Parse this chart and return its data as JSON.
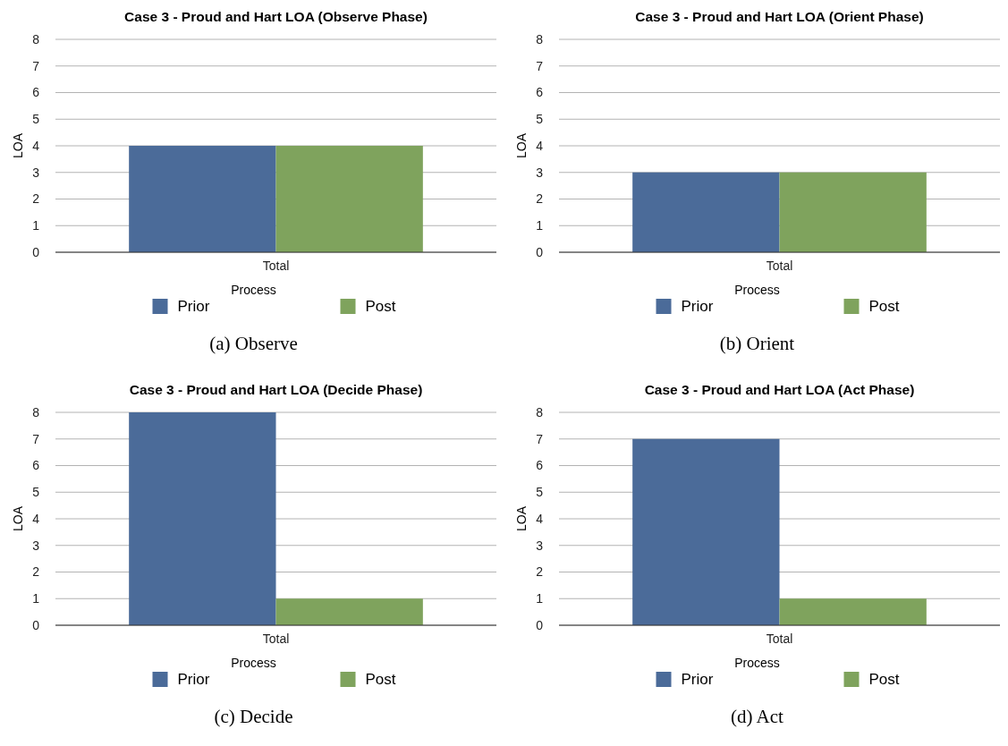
{
  "chart_data": [
    {
      "type": "bar",
      "title": "Case 3 - Proud and Hart LOA (Observe Phase)",
      "xlabel": "Process",
      "ylabel": "LOA",
      "categories": [
        "Total"
      ],
      "series": [
        {
          "name": "Prior",
          "color": "#4b6b99",
          "values": [
            4
          ]
        },
        {
          "name": "Post",
          "color": "#7fa35d",
          "values": [
            4
          ]
        }
      ],
      "ylim": [
        0,
        8
      ],
      "yticks": [
        0,
        1,
        2,
        3,
        4,
        5,
        6,
        7,
        8
      ],
      "grid": "y",
      "legend": "bottom",
      "annotations": [
        "(a) Observe"
      ]
    },
    {
      "type": "bar",
      "title": "Case 3 - Proud and Hart LOA (Orient Phase)",
      "xlabel": "Process",
      "ylabel": "LOA",
      "categories": [
        "Total"
      ],
      "series": [
        {
          "name": "Prior",
          "color": "#4b6b99",
          "values": [
            3
          ]
        },
        {
          "name": "Post",
          "color": "#7fa35d",
          "values": [
            3
          ]
        }
      ],
      "ylim": [
        0,
        8
      ],
      "yticks": [
        0,
        1,
        2,
        3,
        4,
        5,
        6,
        7,
        8
      ],
      "grid": "y",
      "legend": "bottom",
      "annotations": [
        "(b) Orient"
      ]
    },
    {
      "type": "bar",
      "title": "Case 3 - Proud and Hart LOA (Decide Phase)",
      "xlabel": "Process",
      "ylabel": "LOA",
      "categories": [
        "Total"
      ],
      "series": [
        {
          "name": "Prior",
          "color": "#4b6b99",
          "values": [
            8
          ]
        },
        {
          "name": "Post",
          "color": "#7fa35d",
          "values": [
            1
          ]
        }
      ],
      "ylim": [
        0,
        8
      ],
      "yticks": [
        0,
        1,
        2,
        3,
        4,
        5,
        6,
        7,
        8
      ],
      "grid": "y",
      "legend": "bottom",
      "annotations": [
        "(c) Decide"
      ]
    },
    {
      "type": "bar",
      "title": "Case 3 - Proud and Hart LOA (Act Phase)",
      "xlabel": "Process",
      "ylabel": "LOA",
      "categories": [
        "Total"
      ],
      "series": [
        {
          "name": "Prior",
          "color": "#4b6b99",
          "values": [
            7
          ]
        },
        {
          "name": "Post",
          "color": "#7fa35d",
          "values": [
            1
          ]
        }
      ],
      "ylim": [
        0,
        8
      ],
      "yticks": [
        0,
        1,
        2,
        3,
        4,
        5,
        6,
        7,
        8
      ],
      "grid": "y",
      "legend": "bottom",
      "annotations": [
        "(d) Act"
      ]
    }
  ]
}
